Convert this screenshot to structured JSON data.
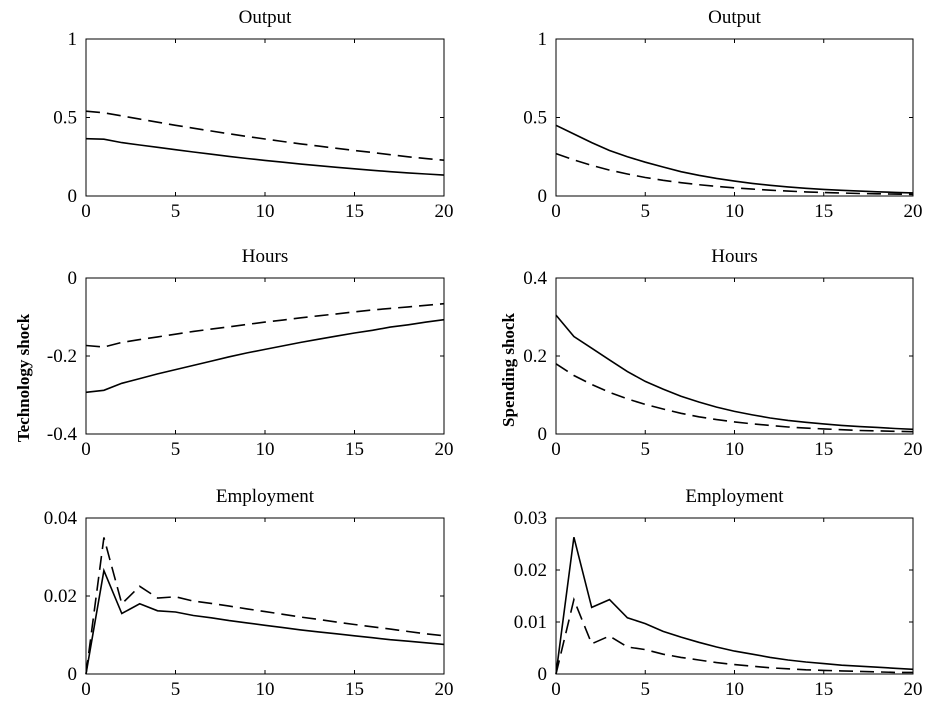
{
  "figure": {
    "left_label": "Technology shock",
    "right_label": "Spending shock"
  },
  "chart_data": [
    {
      "type": "line",
      "panel": "technology-output",
      "title": "Output",
      "xlim": [
        0,
        20
      ],
      "ylim": [
        0,
        1
      ],
      "xticks": [
        "0",
        "5",
        "10",
        "15",
        "20"
      ],
      "yticks": [
        "0",
        "0.5",
        "1"
      ],
      "ytick_values": [
        0,
        0.5,
        1
      ],
      "series": [
        {
          "style": "solid",
          "x": [
            0,
            1,
            2,
            3,
            4,
            5,
            6,
            7,
            8,
            9,
            10,
            11,
            12,
            13,
            14,
            15,
            16,
            17,
            18,
            19,
            20
          ],
          "y": [
            0.365,
            0.362,
            0.34,
            0.325,
            0.31,
            0.295,
            0.28,
            0.266,
            0.252,
            0.239,
            0.227,
            0.215,
            0.203,
            0.193,
            0.183,
            0.173,
            0.164,
            0.155,
            0.147,
            0.14,
            0.133
          ]
        },
        {
          "style": "dashed",
          "x": [
            0,
            1,
            2,
            3,
            4,
            5,
            6,
            7,
            8,
            9,
            10,
            11,
            12,
            13,
            14,
            15,
            16,
            17,
            18,
            19,
            20
          ],
          "y": [
            0.54,
            0.53,
            0.51,
            0.49,
            0.47,
            0.45,
            0.432,
            0.414,
            0.396,
            0.379,
            0.363,
            0.347,
            0.332,
            0.318,
            0.304,
            0.29,
            0.277,
            0.263,
            0.25,
            0.238,
            0.228
          ]
        }
      ]
    },
    {
      "type": "line",
      "panel": "spending-output",
      "title": "Output",
      "xlim": [
        0,
        20
      ],
      "ylim": [
        0,
        1
      ],
      "xticks": [
        "0",
        "5",
        "10",
        "15",
        "20"
      ],
      "yticks": [
        "0",
        "0.5",
        "1"
      ],
      "ytick_values": [
        0,
        0.5,
        1
      ],
      "series": [
        {
          "style": "solid",
          "x": [
            0,
            1,
            2,
            3,
            4,
            5,
            6,
            7,
            8,
            9,
            10,
            11,
            12,
            13,
            14,
            15,
            16,
            17,
            18,
            19,
            20
          ],
          "y": [
            0.45,
            0.395,
            0.34,
            0.29,
            0.25,
            0.215,
            0.185,
            0.155,
            0.132,
            0.112,
            0.095,
            0.08,
            0.068,
            0.058,
            0.049,
            0.042,
            0.036,
            0.031,
            0.027,
            0.023,
            0.02
          ]
        },
        {
          "style": "dashed",
          "x": [
            0,
            1,
            2,
            3,
            4,
            5,
            6,
            7,
            8,
            9,
            10,
            11,
            12,
            13,
            14,
            15,
            16,
            17,
            18,
            19,
            20
          ],
          "y": [
            0.27,
            0.23,
            0.195,
            0.165,
            0.14,
            0.118,
            0.1,
            0.085,
            0.072,
            0.061,
            0.052,
            0.044,
            0.037,
            0.031,
            0.026,
            0.022,
            0.019,
            0.016,
            0.014,
            0.012,
            0.01
          ]
        }
      ]
    },
    {
      "type": "line",
      "panel": "technology-hours",
      "title": "Hours",
      "xlim": [
        0,
        20
      ],
      "ylim": [
        -0.4,
        0
      ],
      "xticks": [
        "0",
        "5",
        "10",
        "15",
        "20"
      ],
      "yticks": [
        "-0.4",
        "-0.2",
        "0"
      ],
      "ytick_values": [
        -0.4,
        -0.2,
        0
      ],
      "series": [
        {
          "style": "solid",
          "x": [
            0,
            1,
            2,
            3,
            4,
            5,
            6,
            7,
            8,
            9,
            10,
            11,
            12,
            13,
            14,
            15,
            16,
            17,
            18,
            19,
            20
          ],
          "y": [
            -0.293,
            -0.288,
            -0.27,
            -0.258,
            -0.246,
            -0.235,
            -0.224,
            -0.213,
            -0.202,
            -0.192,
            -0.183,
            -0.174,
            -0.165,
            -0.157,
            -0.149,
            -0.141,
            -0.134,
            -0.126,
            -0.12,
            -0.113,
            -0.107
          ]
        },
        {
          "style": "dashed",
          "x": [
            0,
            1,
            2,
            3,
            4,
            5,
            6,
            7,
            8,
            9,
            10,
            11,
            12,
            13,
            14,
            15,
            16,
            17,
            18,
            19,
            20
          ],
          "y": [
            -0.173,
            -0.177,
            -0.165,
            -0.158,
            -0.151,
            -0.144,
            -0.137,
            -0.131,
            -0.125,
            -0.119,
            -0.113,
            -0.108,
            -0.102,
            -0.097,
            -0.092,
            -0.087,
            -0.082,
            -0.078,
            -0.074,
            -0.07,
            -0.066
          ]
        }
      ]
    },
    {
      "type": "line",
      "panel": "spending-hours",
      "title": "Hours",
      "xlim": [
        0,
        20
      ],
      "ylim": [
        0,
        0.4
      ],
      "xticks": [
        "0",
        "5",
        "10",
        "15",
        "20"
      ],
      "yticks": [
        "0",
        "0.2",
        "0.4"
      ],
      "ytick_values": [
        0,
        0.2,
        0.4
      ],
      "series": [
        {
          "style": "solid",
          "x": [
            0,
            1,
            2,
            3,
            4,
            5,
            6,
            7,
            8,
            9,
            10,
            11,
            12,
            13,
            14,
            15,
            16,
            17,
            18,
            19,
            20
          ],
          "y": [
            0.305,
            0.25,
            0.22,
            0.19,
            0.16,
            0.135,
            0.115,
            0.097,
            0.082,
            0.069,
            0.058,
            0.049,
            0.041,
            0.035,
            0.03,
            0.026,
            0.022,
            0.019,
            0.017,
            0.014,
            0.012
          ]
        },
        {
          "style": "dashed",
          "x": [
            0,
            1,
            2,
            3,
            4,
            5,
            6,
            7,
            8,
            9,
            10,
            11,
            12,
            13,
            14,
            15,
            16,
            17,
            18,
            19,
            20
          ],
          "y": [
            0.18,
            0.15,
            0.127,
            0.107,
            0.09,
            0.076,
            0.064,
            0.053,
            0.044,
            0.037,
            0.031,
            0.026,
            0.022,
            0.018,
            0.015,
            0.013,
            0.011,
            0.009,
            0.008,
            0.007,
            0.006
          ]
        }
      ]
    },
    {
      "type": "line",
      "panel": "technology-employment",
      "title": "Employment",
      "xlim": [
        0,
        20
      ],
      "ylim": [
        0,
        0.04
      ],
      "xticks": [
        "0",
        "5",
        "10",
        "15",
        "20"
      ],
      "yticks": [
        "0",
        "0.02",
        "0.04"
      ],
      "ytick_values": [
        0,
        0.02,
        0.04
      ],
      "series": [
        {
          "style": "solid",
          "x": [
            0,
            1,
            2,
            3,
            4,
            5,
            6,
            7,
            8,
            9,
            10,
            11,
            12,
            13,
            14,
            15,
            16,
            17,
            18,
            19,
            20
          ],
          "y": [
            0,
            0.0265,
            0.0155,
            0.018,
            0.0162,
            0.0159,
            0.015,
            0.0144,
            0.0137,
            0.0131,
            0.0125,
            0.0119,
            0.0113,
            0.0108,
            0.0103,
            0.0098,
            0.0093,
            0.0088,
            0.0084,
            0.008,
            0.0076
          ]
        },
        {
          "style": "dashed",
          "x": [
            0,
            1,
            2,
            3,
            4,
            5,
            6,
            7,
            8,
            9,
            10,
            11,
            12,
            13,
            14,
            15,
            16,
            17,
            18,
            19,
            20
          ],
          "y": [
            0,
            0.035,
            0.018,
            0.0225,
            0.0195,
            0.0198,
            0.0187,
            0.0181,
            0.0174,
            0.0167,
            0.016,
            0.0153,
            0.0146,
            0.014,
            0.0133,
            0.0127,
            0.0121,
            0.0115,
            0.0109,
            0.0103,
            0.0098
          ]
        }
      ]
    },
    {
      "type": "line",
      "panel": "spending-employment",
      "title": "Employment",
      "xlim": [
        0,
        20
      ],
      "ylim": [
        0,
        0.03
      ],
      "xticks": [
        "0",
        "5",
        "10",
        "15",
        "20"
      ],
      "yticks": [
        "0",
        "0.01",
        "0.02",
        "0.03"
      ],
      "ytick_values": [
        0,
        0.01,
        0.02,
        0.03
      ],
      "series": [
        {
          "style": "solid",
          "x": [
            0,
            1,
            2,
            3,
            4,
            5,
            6,
            7,
            8,
            9,
            10,
            11,
            12,
            13,
            14,
            15,
            16,
            17,
            18,
            19,
            20
          ],
          "y": [
            0,
            0.0263,
            0.0128,
            0.0143,
            0.0108,
            0.0097,
            0.0082,
            0.0071,
            0.0061,
            0.0052,
            0.0044,
            0.0038,
            0.0032,
            0.0027,
            0.0023,
            0.002,
            0.0017,
            0.0015,
            0.0013,
            0.0011,
            0.0009
          ]
        },
        {
          "style": "dashed",
          "x": [
            0,
            1,
            2,
            3,
            4,
            5,
            6,
            7,
            8,
            9,
            10,
            11,
            12,
            13,
            14,
            15,
            16,
            17,
            18,
            19,
            20
          ],
          "y": [
            0,
            0.0143,
            0.0058,
            0.0073,
            0.0052,
            0.0047,
            0.0038,
            0.0032,
            0.0027,
            0.0022,
            0.0018,
            0.0015,
            0.0012,
            0.001,
            0.0008,
            0.0007,
            0.0006,
            0.0005,
            0.0004,
            0.0003,
            0.0003
          ]
        }
      ]
    }
  ]
}
